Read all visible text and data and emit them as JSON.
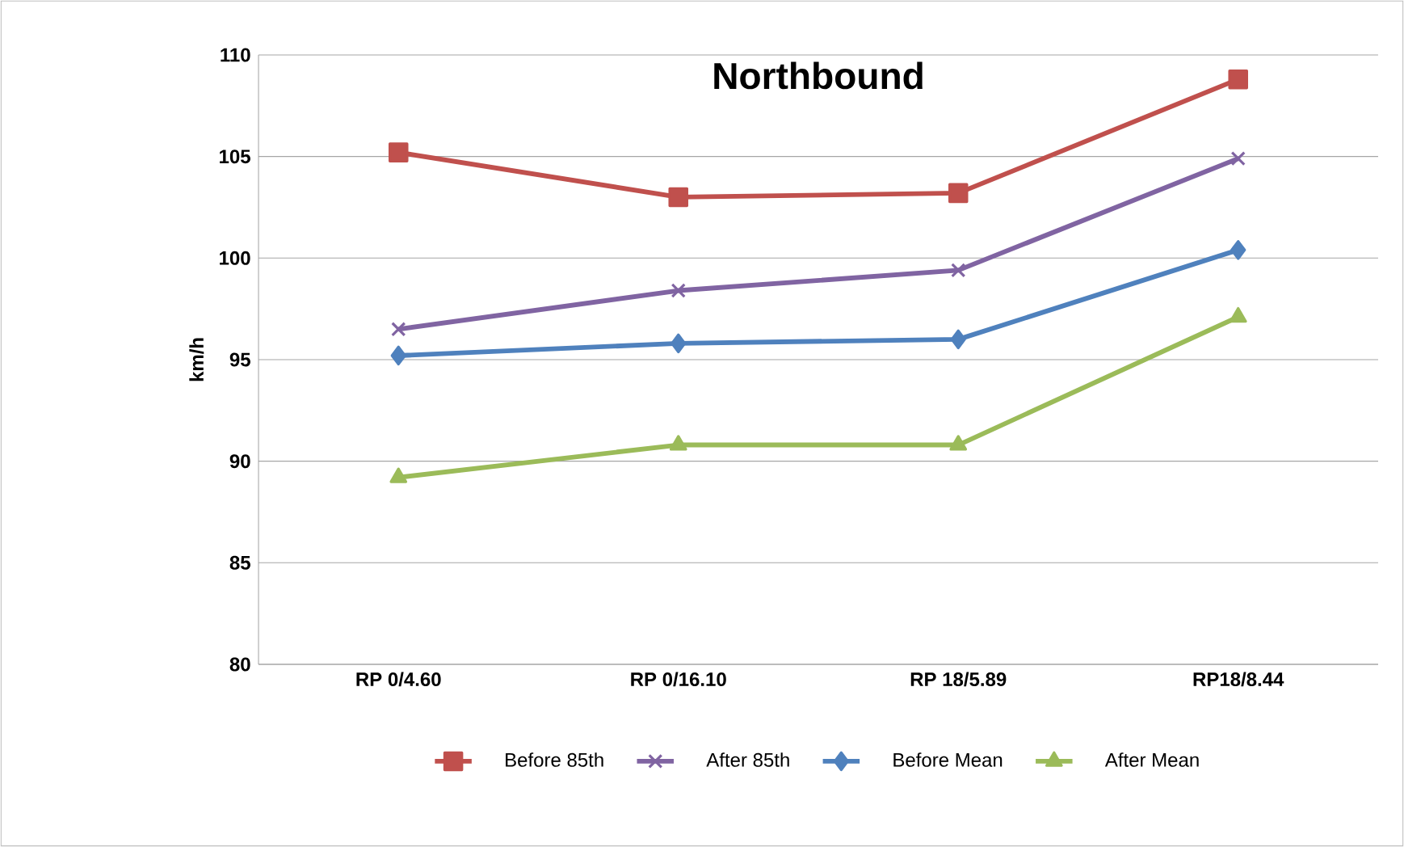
{
  "chart_data": {
    "type": "line",
    "title": "Northbound",
    "ylabel": "km/h",
    "categories": [
      "RP 0/4.60",
      "RP 0/16.10",
      "RP 18/5.89",
      "RP18/8.44"
    ],
    "series": [
      {
        "name": "Before 85th",
        "color": "#c0504d",
        "marker": "square",
        "values": [
          105.2,
          103.0,
          103.2,
          108.8
        ]
      },
      {
        "name": "After 85th",
        "color": "#8064a2",
        "marker": "cross",
        "values": [
          96.5,
          98.4,
          99.4,
          104.9
        ]
      },
      {
        "name": "Before Mean",
        "color": "#4f81bd",
        "marker": "diamond",
        "values": [
          95.2,
          95.8,
          96.0,
          100.4
        ]
      },
      {
        "name": "After Mean",
        "color": "#9bbb59",
        "marker": "triangle",
        "values": [
          89.2,
          90.8,
          90.8,
          97.1
        ]
      }
    ],
    "ylim": [
      80,
      110
    ],
    "yticks": [
      80,
      85,
      90,
      95,
      100,
      105,
      110
    ],
    "grid": "y",
    "legend": "bottom",
    "line_style": "solid"
  }
}
